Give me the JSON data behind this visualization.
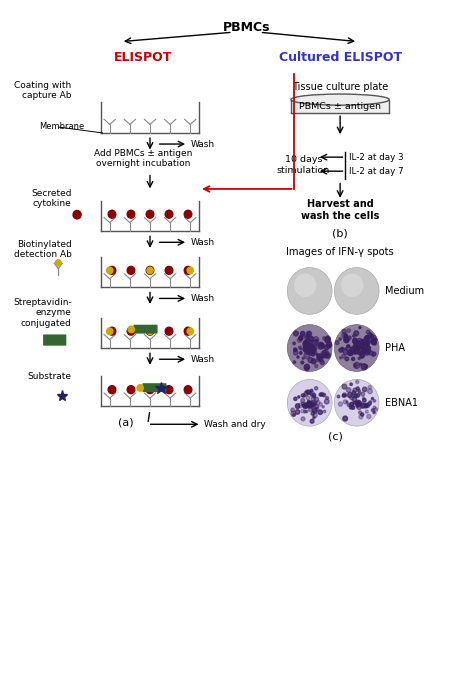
{
  "title_pbmcs": "PBMCs",
  "title_elispot": "ELISPOT",
  "title_cultured": "Cultured ELISPOT",
  "elispot_color": "#cc0000",
  "cultured_color": "#3333cc",
  "bg_color": "#ffffff",
  "panel_a_label": "(a)",
  "panel_b_label": "(b)",
  "panel_c_label": "(c)",
  "left_steps": [
    "Coating with\ncapture Ab",
    "Add PBMCs ± antigen\novernight incubation",
    "Secreted\ncytokine",
    "Biotinylated\ndetection Ab",
    "Streptavidin-\nenzyme\nconjugated",
    "Substrate"
  ],
  "wash_labels": [
    "Wash",
    "Wash",
    "Wash",
    "Wash",
    "Wash and dry"
  ],
  "right_steps_b": [
    "Tissue culture plate",
    "PBMCs ± antigen",
    "10 days\nstimulation",
    "Harvest and\nwash the cells"
  ],
  "il2_labels": [
    "IL-2 at day 3",
    "IL-2 at day 7"
  ],
  "ifn_title": "Images of IFN-γ spots",
  "spot_labels": [
    "Medium",
    "PHA",
    "EBNA1"
  ],
  "membrane_label": "Membrane",
  "ab_color": "#888888",
  "dot_color": "#8b0000",
  "biotin_color": "#ccaa00",
  "enzyme_color": "#336633",
  "star_color": "#222266",
  "border_color": "#555555",
  "pha_face": "#9080a0",
  "pha_edge": "#706080",
  "pha_speckle": "#3a2060",
  "ebna_face": "#d8d0e8",
  "ebna_edge": "#aaaaaa",
  "ebna_speckle": "#3a2060",
  "medium_face": "#c8c8c8",
  "medium_edge": "#aaaaaa",
  "medium_inner": "#e0e0e0",
  "red_arrow": "#cc0000"
}
